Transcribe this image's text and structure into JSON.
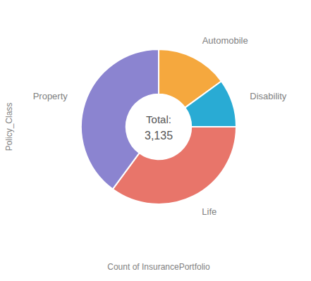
{
  "chart_data": {
    "type": "donut",
    "categories": [
      "Automobile",
      "Disability",
      "Life",
      "Property"
    ],
    "values": [
      470,
      314,
      1100,
      1251
    ],
    "colors": [
      "#F5A83E",
      "#29ABD4",
      "#E8756A",
      "#8B84D0"
    ],
    "xlabel": "Count of InsurancePortfolio",
    "ylabel": "Policy_Class",
    "annotations": [
      "Total:",
      "3,135"
    ]
  }
}
